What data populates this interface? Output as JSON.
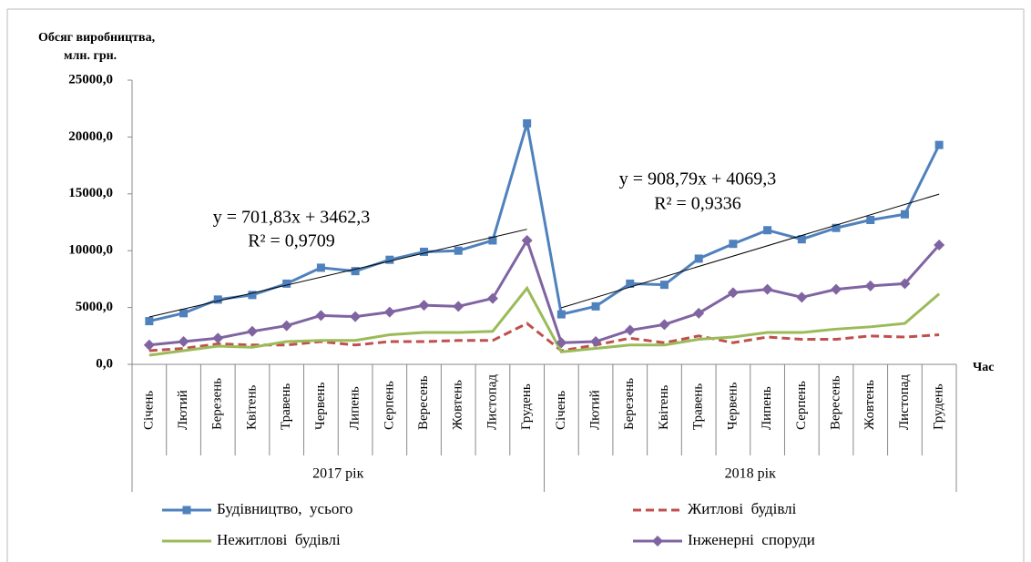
{
  "chart_data": {
    "type": "line",
    "y_label_lines": [
      "Обсяг виробництва,",
      "млн. грн."
    ],
    "x_label": "Час",
    "categories": [
      "Січень",
      "Лютий",
      "Березень",
      "Квітень",
      "Травень",
      "Червень",
      "Липень",
      "Серпень",
      "Вересень",
      "Жовтень",
      "Листопад",
      "Грудень",
      "Січень",
      "Лютий",
      "Березень",
      "Квітень",
      "Травень",
      "Червень",
      "Липень",
      "Серпень",
      "Вересень",
      "Жовтень",
      "Листопад",
      "Грудень"
    ],
    "category_groups": [
      "2017 рік",
      "2018 рік"
    ],
    "ylim": [
      0,
      25000
    ],
    "yticks": [
      {
        "value": 0,
        "label": "0,0"
      },
      {
        "value": 5000,
        "label": "5000,0"
      },
      {
        "value": 10000,
        "label": "10000,0"
      },
      {
        "value": 15000,
        "label": "15000,0"
      },
      {
        "value": 20000,
        "label": "20000,0"
      },
      {
        "value": 25000,
        "label": "25000,0"
      }
    ],
    "series": [
      {
        "name": "Будівництво,  усього",
        "color": "#4f81bd",
        "marker": "square",
        "dashed": false,
        "values": [
          3800,
          4500,
          5700,
          6100,
          7100,
          8500,
          8200,
          9200,
          9900,
          10000,
          10900,
          21200,
          4400,
          5100,
          7100,
          7000,
          9300,
          10600,
          11800,
          11000,
          12000,
          12700,
          13200,
          19300
        ]
      },
      {
        "name": "Житлові  будівлі",
        "color": "#c0504d",
        "marker": "none",
        "dashed": true,
        "values": [
          1200,
          1400,
          1800,
          1700,
          1700,
          2000,
          1700,
          2000,
          2000,
          2100,
          2100,
          3600,
          1200,
          1700,
          2300,
          1900,
          2500,
          1900,
          2400,
          2200,
          2200,
          2500,
          2400,
          2600
        ]
      },
      {
        "name": "Нежитлові  будівлі",
        "color": "#9bbb59",
        "marker": "none",
        "dashed": false,
        "values": [
          800,
          1200,
          1600,
          1500,
          2000,
          2100,
          2100,
          2600,
          2800,
          2800,
          2900,
          6700,
          1100,
          1400,
          1700,
          1700,
          2200,
          2400,
          2800,
          2800,
          3100,
          3300,
          3600,
          6200
        ]
      },
      {
        "name": "Інженерні  споруди",
        "color": "#8064a2",
        "marker": "diamond",
        "dashed": false,
        "values": [
          1700,
          2000,
          2300,
          2900,
          3400,
          4300,
          4200,
          4600,
          5200,
          5100,
          5800,
          10900,
          1900,
          2000,
          3000,
          3500,
          4500,
          6300,
          6600,
          5900,
          6600,
          6900,
          7100,
          10500
        ]
      }
    ],
    "trendlines": [
      {
        "equation": "y = 701,83x + 3462,3",
        "r2": "R² = 0,9709",
        "slope": 701.83,
        "intercept": 3462.3
      },
      {
        "equation": "y = 908,79x + 4069,3",
        "r2": "R² = 0,9336",
        "slope": 908.79,
        "intercept": 4069.3
      }
    ]
  }
}
